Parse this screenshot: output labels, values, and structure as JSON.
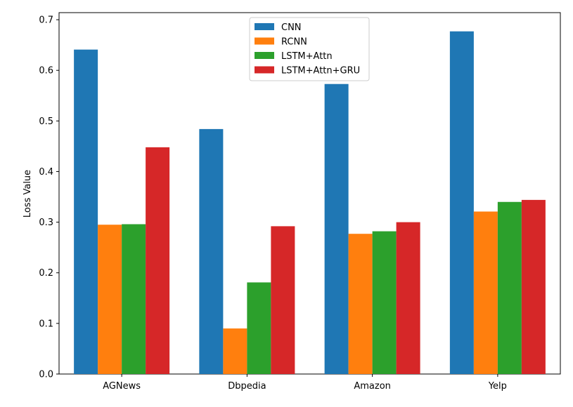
{
  "chart_data": {
    "type": "bar",
    "title": "",
    "xlabel": "",
    "ylabel": "Loss Value",
    "ylim": [
      0,
      0.714
    ],
    "yticks": [
      0.0,
      0.1,
      0.2,
      0.3,
      0.4,
      0.5,
      0.6,
      0.7
    ],
    "categories": [
      "AGNews",
      "Dbpedia",
      "Amazon",
      "Yelp"
    ],
    "series": [
      {
        "name": "CNN",
        "color": "#1f77b4",
        "values": [
          0.641,
          0.484,
          0.573,
          0.677
        ]
      },
      {
        "name": "RCNN",
        "color": "#ff7f0e",
        "values": [
          0.295,
          0.09,
          0.277,
          0.321
        ]
      },
      {
        "name": "LSTM+Attn",
        "color": "#2ca02c",
        "values": [
          0.296,
          0.181,
          0.282,
          0.34
        ]
      },
      {
        "name": "LSTM+Attn+GRU",
        "color": "#d62728",
        "values": [
          0.448,
          0.292,
          0.3,
          0.344
        ]
      }
    ],
    "grid": false,
    "legend_position": "top-center"
  }
}
